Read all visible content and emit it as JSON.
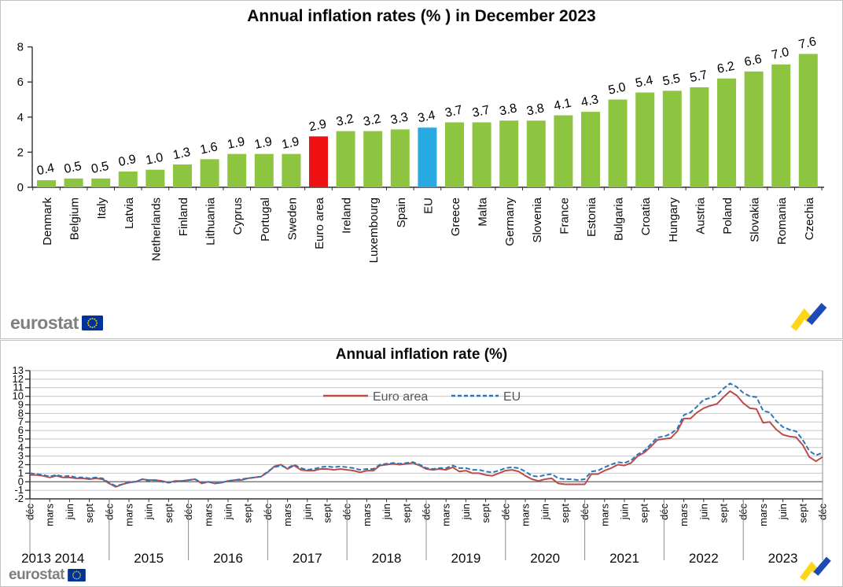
{
  "branding": {
    "logo_text": "eurostat"
  },
  "chart_data": [
    {
      "type": "bar",
      "title": "Annual inflation rates (% ) in December 2023",
      "ylabel": "",
      "xlabel": "",
      "ylim": [
        0,
        8
      ],
      "yticks": [
        0,
        2,
        4,
        6,
        8
      ],
      "grid": false,
      "categories": [
        "Denmark",
        "Belgium",
        "Italy",
        "Latvia",
        "Netherlands",
        "Finland",
        "Lithuania",
        "Cyprus",
        "Portugal",
        "Sweden",
        "Euro area",
        "Ireland",
        "Luxembourg",
        "Spain",
        "EU",
        "Greece",
        "Malta",
        "Germany",
        "Slovenia",
        "France",
        "Estonia",
        "Bulgaria",
        "Croatia",
        "Hungary",
        "Austria",
        "Poland",
        "Slovakia",
        "Romania",
        "Czechia"
      ],
      "values": [
        0.4,
        0.5,
        0.5,
        0.9,
        1.0,
        1.3,
        1.6,
        1.9,
        1.9,
        1.9,
        2.9,
        3.2,
        3.2,
        3.3,
        3.4,
        3.7,
        3.7,
        3.8,
        3.8,
        4.1,
        4.3,
        5.0,
        5.4,
        5.5,
        5.7,
        6.2,
        6.6,
        7.0,
        7.6
      ],
      "bar_colors": {
        "default": "#8DC540",
        "Euro area": "#EE1111",
        "EU": "#29A9E1"
      }
    },
    {
      "type": "line",
      "title": "Annual inflation rate (%)",
      "ylim": [
        -2,
        13
      ],
      "grid": true,
      "legend_position": "top-center-inside",
      "x_unit": "monthly",
      "x_range": "déc 2013 – déc 2023",
      "x_tick_cycle": [
        "déc",
        "mars",
        "juin",
        "sept"
      ],
      "years": [
        "2013",
        "2014",
        "2015",
        "2016",
        "2017",
        "2018",
        "2019",
        "2020",
        "2021",
        "2022",
        "2023"
      ],
      "series": [
        {
          "name": "Euro area",
          "color": "#BE4B48",
          "dash": "solid",
          "values": [
            0.8,
            0.8,
            0.7,
            0.5,
            0.7,
            0.5,
            0.5,
            0.4,
            0.4,
            0.3,
            0.4,
            0.3,
            -0.2,
            -0.6,
            -0.3,
            -0.1,
            0.0,
            0.3,
            0.2,
            0.2,
            0.1,
            -0.1,
            0.1,
            0.1,
            0.2,
            0.3,
            -0.2,
            0.0,
            -0.2,
            -0.1,
            0.1,
            0.2,
            0.2,
            0.4,
            0.5,
            0.6,
            1.1,
            1.8,
            2.0,
            1.5,
            1.9,
            1.4,
            1.3,
            1.3,
            1.5,
            1.5,
            1.4,
            1.5,
            1.4,
            1.3,
            1.1,
            1.3,
            1.3,
            1.9,
            2.0,
            2.1,
            2.0,
            2.1,
            2.2,
            1.9,
            1.5,
            1.4,
            1.5,
            1.4,
            1.7,
            1.2,
            1.3,
            1.0,
            1.0,
            0.8,
            0.7,
            1.0,
            1.3,
            1.4,
            1.2,
            0.7,
            0.3,
            0.1,
            0.3,
            0.4,
            -0.2,
            -0.3,
            -0.3,
            -0.3,
            -0.3,
            0.9,
            0.9,
            1.3,
            1.6,
            2.0,
            1.9,
            2.2,
            3.0,
            3.4,
            4.1,
            4.9,
            5.0,
            5.1,
            5.9,
            7.4,
            7.4,
            8.1,
            8.6,
            8.9,
            9.1,
            9.9,
            10.6,
            10.1,
            9.2,
            8.6,
            8.5,
            6.9,
            7.0,
            6.1,
            5.5,
            5.3,
            5.2,
            4.3,
            2.9,
            2.4,
            2.9
          ]
        },
        {
          "name": "EU",
          "color": "#2E75B6",
          "dash": "dashed",
          "values": [
            1.0,
            0.9,
            0.8,
            0.6,
            0.8,
            0.6,
            0.7,
            0.5,
            0.5,
            0.4,
            0.5,
            0.4,
            -0.1,
            -0.5,
            -0.3,
            0.0,
            0.0,
            0.3,
            0.1,
            0.2,
            0.0,
            -0.1,
            0.0,
            0.1,
            0.2,
            0.3,
            -0.1,
            0.0,
            -0.2,
            -0.1,
            0.1,
            0.2,
            0.3,
            0.4,
            0.5,
            0.6,
            1.2,
            1.7,
            1.9,
            1.6,
            2.0,
            1.6,
            1.4,
            1.5,
            1.7,
            1.8,
            1.7,
            1.8,
            1.7,
            1.6,
            1.4,
            1.5,
            1.5,
            2.0,
            2.1,
            2.2,
            2.1,
            2.2,
            2.3,
            2.0,
            1.6,
            1.5,
            1.6,
            1.6,
            1.9,
            1.6,
            1.6,
            1.4,
            1.4,
            1.2,
            1.1,
            1.3,
            1.6,
            1.7,
            1.6,
            1.2,
            0.7,
            0.6,
            0.8,
            0.9,
            0.4,
            0.3,
            0.3,
            0.2,
            0.3,
            1.2,
            1.3,
            1.7,
            2.0,
            2.3,
            2.2,
            2.5,
            3.2,
            3.6,
            4.4,
            5.2,
            5.3,
            5.6,
            6.2,
            7.8,
            8.1,
            8.8,
            9.6,
            9.8,
            10.1,
            10.9,
            11.5,
            11.1,
            10.4,
            10.0,
            9.9,
            8.3,
            8.1,
            7.1,
            6.4,
            6.1,
            5.9,
            4.9,
            3.6,
            3.1,
            3.4
          ]
        }
      ]
    }
  ]
}
